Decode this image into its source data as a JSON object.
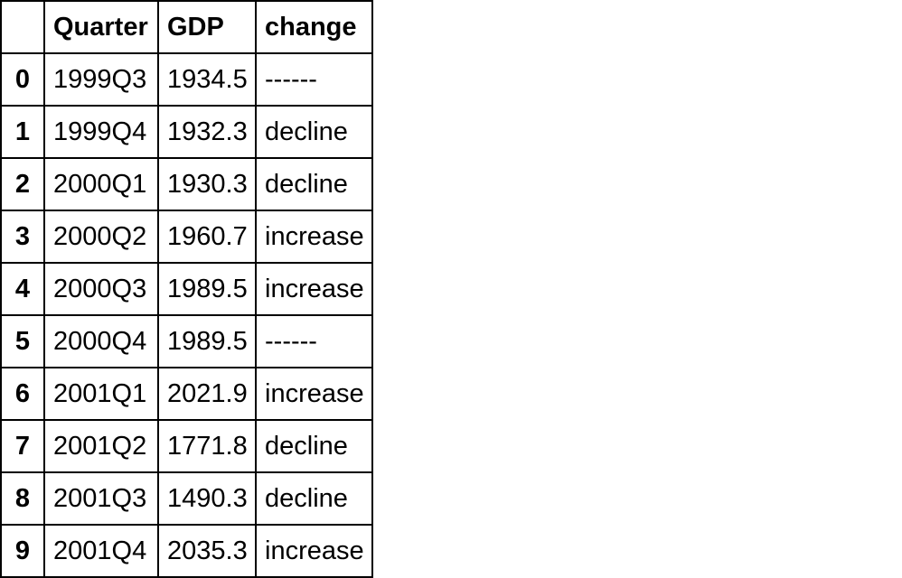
{
  "page": {
    "background_color": "#ffffff",
    "border_color": "#000000",
    "text_color": "#000000"
  },
  "table": {
    "headers": [
      "",
      "Quarter",
      "GDP",
      "change"
    ],
    "rows": [
      [
        "0",
        "1999Q3",
        "1934.5",
        "------"
      ],
      [
        "1",
        "1999Q4",
        "1932.3",
        "decline"
      ],
      [
        "2",
        "2000Q1",
        "1930.3",
        "decline"
      ],
      [
        "3",
        "2000Q2",
        "1960.7",
        "increase"
      ],
      [
        "4",
        "2000Q3",
        "1989.5",
        "increase"
      ],
      [
        "5",
        "2000Q4",
        "1989.5",
        "------"
      ],
      [
        "6",
        "2001Q1",
        "2021.9",
        "increase"
      ],
      [
        "7",
        "2001Q2",
        "1771.8",
        "decline"
      ],
      [
        "8",
        "2001Q3",
        "1490.3",
        "decline"
      ],
      [
        "9",
        "2001Q4",
        "2035.3",
        "increase"
      ]
    ]
  },
  "chart_data": {
    "type": "table",
    "columns": [
      "Quarter",
      "GDP",
      "change"
    ],
    "index": [
      0,
      1,
      2,
      3,
      4,
      5,
      6,
      7,
      8,
      9
    ],
    "rows": [
      [
        "1999Q3",
        1934.5,
        "------"
      ],
      [
        "1999Q4",
        1932.3,
        "decline"
      ],
      [
        "2000Q1",
        1930.3,
        "decline"
      ],
      [
        "2000Q2",
        1960.7,
        "increase"
      ],
      [
        "2000Q3",
        1989.5,
        "increase"
      ],
      [
        "2000Q4",
        1989.5,
        "------"
      ],
      [
        "2001Q1",
        2021.9,
        "increase"
      ],
      [
        "2001Q2",
        1771.8,
        "decline"
      ],
      [
        "2001Q3",
        1490.3,
        "decline"
      ],
      [
        "2001Q4",
        2035.3,
        "increase"
      ]
    ]
  }
}
